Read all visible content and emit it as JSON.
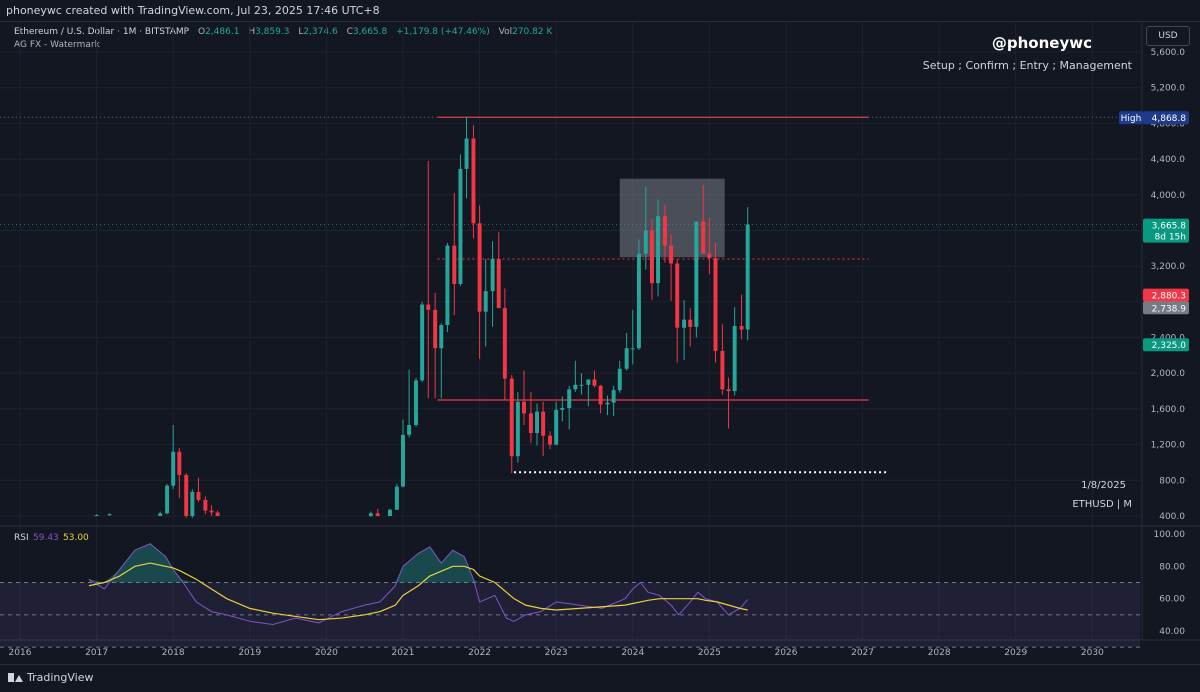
{
  "header": {
    "caption": "phoneywc created with TradingView.com, Jul 23, 2025 17:46 UTC+8"
  },
  "legend": {
    "symbol": "Ethereum / U.S. Dollar · 1M · BITSTAMP",
    "o_label": "O",
    "o": "2,486.1",
    "h_label": "H",
    "h": "3,859.3",
    "l_label": "L",
    "l": "2,374.6",
    "c_label": "C",
    "c": "3,665.8",
    "change": "+1,179.8 (+47.46%)",
    "vol_label": "Vol",
    "vol": "270.82 K",
    "indicator": "AG FX - Watermark"
  },
  "watermark": {
    "handle": "@phoneywc",
    "tagline": "Setup ; Confirm ; Entry ; Management",
    "date": "1/8/2025",
    "symbol": "ETHUSD | M"
  },
  "currency_label": "USD",
  "price_badges": [
    {
      "label": "High",
      "value": "4,868.8",
      "color": "#1e3a8a"
    },
    {
      "value": "3,665.8",
      "sub": "8d 15h",
      "color": "#089981"
    },
    {
      "value": "2,880.3",
      "color": "#f23645"
    },
    {
      "value": "2,738.9",
      "color": "#787b86"
    },
    {
      "value": "2,325.0",
      "color": "#089981"
    }
  ],
  "rsi": {
    "label": "RSI",
    "value": "59.43",
    "ma_value": "53.00",
    "ticks": [
      "100.00",
      "80.00",
      "60.00",
      "40.00"
    ],
    "line_color": "#7e57c2",
    "ma_color": "#e8d13a"
  },
  "footer": {
    "brand": "TradingView"
  },
  "colors": {
    "up": "#26a69a",
    "down": "#f23645",
    "background": "#131722",
    "level_line": "#f23645",
    "supply_zone": "#787b86"
  },
  "chart_data": {
    "type": "candlestick",
    "title": "Ethereum / U.S. Dollar",
    "timeframe": "1M",
    "exchange": "BITSTAMP",
    "y_ticks": [
      "5,600.0",
      "5,200.0",
      "4,800.0",
      "4,400.0",
      "4,000.0",
      "3,600.0",
      "3,200.0",
      "2,800.0",
      "2,400.0",
      "2,000.0",
      "1,600.0",
      "1,200.0",
      "800.0",
      "400.0"
    ],
    "x_ticks": [
      "2016",
      "2017",
      "2018",
      "2019",
      "2020",
      "2021",
      "2022",
      "2023",
      "2024",
      "2025",
      "2026",
      "2027",
      "2028",
      "2029",
      "2030"
    ],
    "ylim": [
      400,
      5700
    ],
    "xlim": [
      2016.0,
      2030.4
    ],
    "levels": [
      {
        "name": "resistance-high",
        "price": 4868.8,
        "x_start": 2021.45,
        "x_end": 2027.08,
        "style": "solid"
      },
      {
        "name": "mid-level",
        "price": 3280,
        "x_start": 2021.45,
        "x_end": 2027.08,
        "style": "dotted"
      },
      {
        "name": "support",
        "price": 1700,
        "x_start": 2021.45,
        "x_end": 2027.08,
        "style": "solid"
      },
      {
        "name": "low-level",
        "price": 890,
        "x_start": 2022.45,
        "x_end": 2027.33,
        "style": "dotted-white"
      }
    ],
    "zone": {
      "name": "supply-zone",
      "x_start": 2023.83,
      "x_end": 2025.2,
      "price_low": 3300,
      "price_high": 4180
    },
    "candles": [
      {
        "t": 2017.0,
        "o": 400,
        "h": 420,
        "l": 400,
        "c": 410
      },
      {
        "t": 2017.17,
        "o": 410,
        "h": 430,
        "l": 400,
        "c": 420
      },
      {
        "t": 2017.83,
        "o": 400,
        "h": 450,
        "l": 400,
        "c": 430
      },
      {
        "t": 2017.92,
        "o": 430,
        "h": 760,
        "l": 420,
        "c": 740
      },
      {
        "t": 2018.0,
        "o": 740,
        "h": 1420,
        "l": 700,
        "c": 1120
      },
      {
        "t": 2018.08,
        "o": 1120,
        "h": 1160,
        "l": 600,
        "c": 860
      },
      {
        "t": 2018.17,
        "o": 860,
        "h": 880,
        "l": 380,
        "c": 400
      },
      {
        "t": 2018.25,
        "o": 400,
        "h": 700,
        "l": 380,
        "c": 670
      },
      {
        "t": 2018.33,
        "o": 670,
        "h": 830,
        "l": 560,
        "c": 580
      },
      {
        "t": 2018.42,
        "o": 580,
        "h": 620,
        "l": 420,
        "c": 460
      },
      {
        "t": 2018.5,
        "o": 460,
        "h": 520,
        "l": 400,
        "c": 440
      },
      {
        "t": 2018.58,
        "o": 440,
        "h": 460,
        "l": 400,
        "c": 400
      },
      {
        "t": 2020.58,
        "o": 400,
        "h": 450,
        "l": 390,
        "c": 430
      },
      {
        "t": 2020.67,
        "o": 430,
        "h": 480,
        "l": 400,
        "c": 400
      },
      {
        "t": 2020.83,
        "o": 400,
        "h": 480,
        "l": 400,
        "c": 470
      },
      {
        "t": 2020.92,
        "o": 470,
        "h": 760,
        "l": 470,
        "c": 730
      },
      {
        "t": 2021.0,
        "o": 730,
        "h": 1480,
        "l": 720,
        "c": 1310
      },
      {
        "t": 2021.08,
        "o": 1310,
        "h": 2040,
        "l": 1280,
        "c": 1420
      },
      {
        "t": 2021.17,
        "o": 1420,
        "h": 1950,
        "l": 1400,
        "c": 1920
      },
      {
        "t": 2021.25,
        "o": 1920,
        "h": 2800,
        "l": 1900,
        "c": 2770
      },
      {
        "t": 2021.33,
        "o": 2770,
        "h": 4380,
        "l": 1720,
        "c": 2710
      },
      {
        "t": 2021.42,
        "o": 2710,
        "h": 2900,
        "l": 1720,
        "c": 2280
      },
      {
        "t": 2021.5,
        "o": 2280,
        "h": 2560,
        "l": 1720,
        "c": 2540
      },
      {
        "t": 2021.58,
        "o": 2540,
        "h": 3460,
        "l": 2460,
        "c": 3430
      },
      {
        "t": 2021.67,
        "o": 3430,
        "h": 4020,
        "l": 2650,
        "c": 3000
      },
      {
        "t": 2021.75,
        "o": 3000,
        "h": 4450,
        "l": 2980,
        "c": 4290
      },
      {
        "t": 2021.83,
        "o": 4290,
        "h": 4870,
        "l": 3960,
        "c": 4630
      },
      {
        "t": 2021.92,
        "o": 4630,
        "h": 4780,
        "l": 3510,
        "c": 3680
      },
      {
        "t": 2022.0,
        "o": 3680,
        "h": 3880,
        "l": 2160,
        "c": 2690
      },
      {
        "t": 2022.08,
        "o": 2690,
        "h": 3280,
        "l": 2300,
        "c": 2920
      },
      {
        "t": 2022.17,
        "o": 2920,
        "h": 3480,
        "l": 2520,
        "c": 3280
      },
      {
        "t": 2022.25,
        "o": 3280,
        "h": 3580,
        "l": 2730,
        "c": 2730
      },
      {
        "t": 2022.33,
        "o": 2730,
        "h": 2950,
        "l": 1700,
        "c": 1940
      },
      {
        "t": 2022.42,
        "o": 1940,
        "h": 1980,
        "l": 880,
        "c": 1070
      },
      {
        "t": 2022.5,
        "o": 1070,
        "h": 1790,
        "l": 1000,
        "c": 1680
      },
      {
        "t": 2022.58,
        "o": 1680,
        "h": 2030,
        "l": 1420,
        "c": 1550
      },
      {
        "t": 2022.67,
        "o": 1550,
        "h": 1790,
        "l": 1220,
        "c": 1330
      },
      {
        "t": 2022.75,
        "o": 1330,
        "h": 1660,
        "l": 1190,
        "c": 1570
      },
      {
        "t": 2022.83,
        "o": 1570,
        "h": 1680,
        "l": 1070,
        "c": 1300
      },
      {
        "t": 2022.92,
        "o": 1300,
        "h": 1350,
        "l": 1150,
        "c": 1200
      },
      {
        "t": 2023.0,
        "o": 1200,
        "h": 1680,
        "l": 1190,
        "c": 1590
      },
      {
        "t": 2023.08,
        "o": 1590,
        "h": 1740,
        "l": 1460,
        "c": 1610
      },
      {
        "t": 2023.17,
        "o": 1610,
        "h": 1860,
        "l": 1370,
        "c": 1820
      },
      {
        "t": 2023.25,
        "o": 1820,
        "h": 2140,
        "l": 1790,
        "c": 1870
      },
      {
        "t": 2023.33,
        "o": 1870,
        "h": 2000,
        "l": 1760,
        "c": 1870
      },
      {
        "t": 2023.42,
        "o": 1870,
        "h": 1930,
        "l": 1630,
        "c": 1930
      },
      {
        "t": 2023.5,
        "o": 1930,
        "h": 2030,
        "l": 1840,
        "c": 1860
      },
      {
        "t": 2023.58,
        "o": 1860,
        "h": 1870,
        "l": 1550,
        "c": 1650
      },
      {
        "t": 2023.67,
        "o": 1650,
        "h": 1750,
        "l": 1530,
        "c": 1670
      },
      {
        "t": 2023.75,
        "o": 1670,
        "h": 1860,
        "l": 1520,
        "c": 1810
      },
      {
        "t": 2023.83,
        "o": 1810,
        "h": 2140,
        "l": 1780,
        "c": 2050
      },
      {
        "t": 2023.92,
        "o": 2050,
        "h": 2450,
        "l": 2030,
        "c": 2280
      },
      {
        "t": 2024.0,
        "o": 2280,
        "h": 2710,
        "l": 2100,
        "c": 2280
      },
      {
        "t": 2024.08,
        "o": 2280,
        "h": 3500,
        "l": 2260,
        "c": 3340
      },
      {
        "t": 2024.17,
        "o": 3340,
        "h": 4090,
        "l": 3160,
        "c": 3600
      },
      {
        "t": 2024.25,
        "o": 3600,
        "h": 3730,
        "l": 2820,
        "c": 3010
      },
      {
        "t": 2024.33,
        "o": 3010,
        "h": 3950,
        "l": 2860,
        "c": 3760
      },
      {
        "t": 2024.42,
        "o": 3760,
        "h": 3890,
        "l": 3240,
        "c": 3430
      },
      {
        "t": 2024.5,
        "o": 3430,
        "h": 3560,
        "l": 2810,
        "c": 3230
      },
      {
        "t": 2024.58,
        "o": 3230,
        "h": 3280,
        "l": 2120,
        "c": 2510
      },
      {
        "t": 2024.67,
        "o": 2510,
        "h": 2820,
        "l": 2150,
        "c": 2600
      },
      {
        "t": 2024.75,
        "o": 2600,
        "h": 2730,
        "l": 2300,
        "c": 2520
      },
      {
        "t": 2024.83,
        "o": 2520,
        "h": 3700,
        "l": 2400,
        "c": 3700
      },
      {
        "t": 2024.92,
        "o": 3700,
        "h": 4110,
        "l": 3360,
        "c": 3340
      },
      {
        "t": 2025.0,
        "o": 3340,
        "h": 3740,
        "l": 3110,
        "c": 3290
      },
      {
        "t": 2025.08,
        "o": 3290,
        "h": 3460,
        "l": 2120,
        "c": 2250
      },
      {
        "t": 2025.17,
        "o": 2250,
        "h": 2550,
        "l": 1760,
        "c": 1820
      },
      {
        "t": 2025.25,
        "o": 1820,
        "h": 1950,
        "l": 1380,
        "c": 1800
      },
      {
        "t": 2025.33,
        "o": 1800,
        "h": 2740,
        "l": 1750,
        "c": 2530
      },
      {
        "t": 2025.42,
        "o": 2530,
        "h": 2880,
        "l": 2380,
        "c": 2490
      },
      {
        "t": 2025.5,
        "o": 2490,
        "h": 3860,
        "l": 2370,
        "c": 3666
      }
    ],
    "rsi_series": {
      "x": [
        2016.9,
        2017.1,
        2017.3,
        2017.5,
        2017.7,
        2017.9,
        2018.0,
        2018.1,
        2018.3,
        2018.5,
        2018.7,
        2019.0,
        2019.3,
        2019.6,
        2019.9,
        2020.2,
        2020.5,
        2020.7,
        2020.9,
        2021.0,
        2021.2,
        2021.35,
        2021.5,
        2021.65,
        2021.8,
        2021.92,
        2022.0,
        2022.2,
        2022.35,
        2022.45,
        2022.6,
        2022.8,
        2023.0,
        2023.3,
        2023.6,
        2023.9,
        2024.0,
        2024.1,
        2024.2,
        2024.35,
        2024.5,
        2024.6,
        2024.75,
        2024.85,
        2024.95,
        2025.1,
        2025.25,
        2025.4,
        2025.5
      ],
      "values": [
        72,
        66,
        78,
        90,
        94,
        86,
        78,
        72,
        58,
        52,
        50,
        46,
        44,
        48,
        45,
        52,
        56,
        58,
        68,
        80,
        88,
        92,
        82,
        90,
        86,
        72,
        58,
        62,
        48,
        46,
        50,
        52,
        58,
        56,
        54,
        60,
        66,
        70,
        64,
        62,
        56,
        50,
        58,
        64,
        60,
        58,
        50,
        54,
        59.43
      ],
      "ma_values": [
        68,
        70,
        74,
        80,
        82,
        80,
        79,
        77,
        72,
        66,
        60,
        54,
        51,
        49,
        47,
        48,
        50,
        52,
        56,
        62,
        68,
        74,
        77,
        80,
        80,
        78,
        74,
        70,
        64,
        60,
        56,
        54,
        53,
        54,
        55,
        56,
        57,
        58,
        59,
        60,
        60,
        60,
        60,
        60,
        59,
        58,
        56,
        54,
        53
      ],
      "overbought": 70,
      "middle": 50,
      "oversold": 30
    }
  }
}
